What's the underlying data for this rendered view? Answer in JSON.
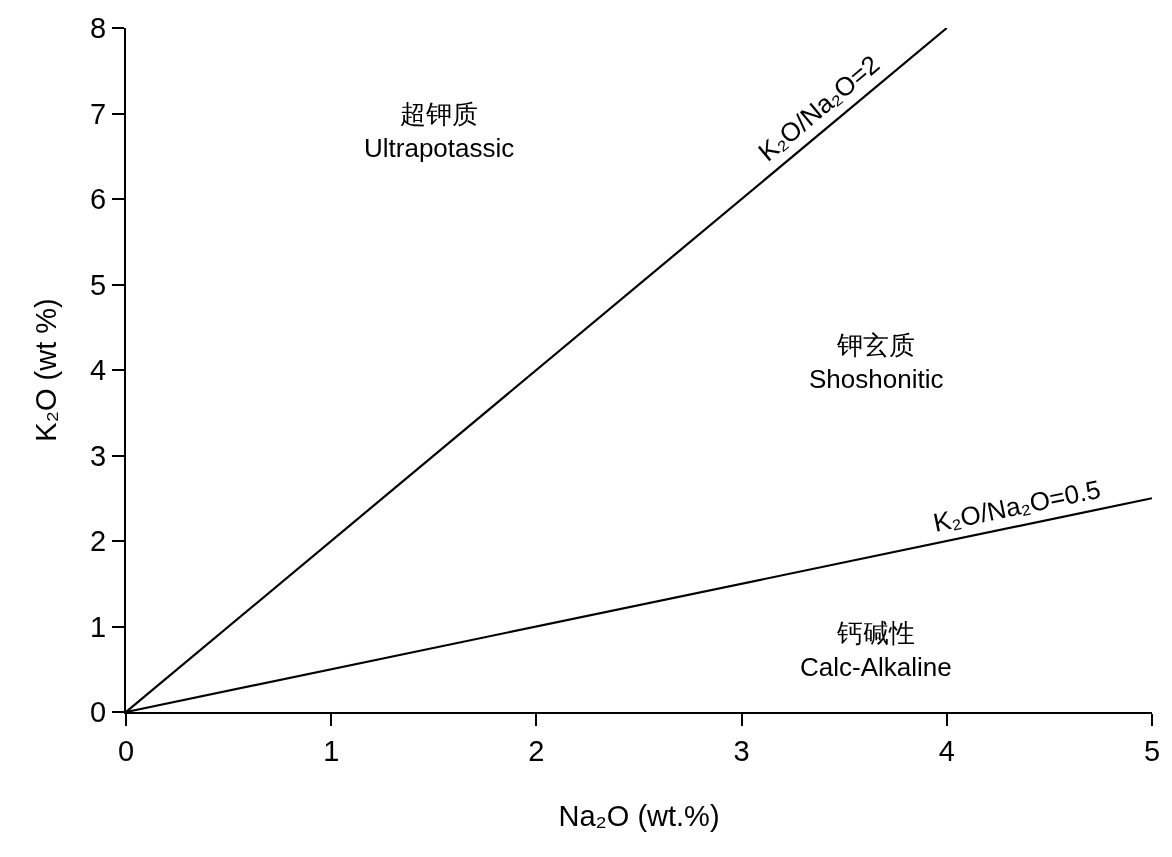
{
  "chart_data": {
    "type": "line",
    "xlabel": "Na₂O (wt.%)",
    "ylabel": "K₂O (wt %)",
    "xlim": [
      0,
      5
    ],
    "xticks": [
      0,
      1,
      2,
      3,
      4,
      5
    ],
    "ylim": [
      0,
      8
    ],
    "yticks": [
      0,
      1,
      2,
      3,
      4,
      5,
      6,
      7,
      8
    ],
    "series": [
      {
        "color": "#000000",
        "x": [
          0,
          4
        ],
        "values": [
          0,
          8
        ]
      },
      {
        "color": "#000000",
        "x": [
          0,
          5
        ],
        "values": [
          0,
          2.5
        ]
      }
    ],
    "annotations": [
      {
        "text": "K₂O/Na₂O=2",
        "x": 3.44,
        "y": 6.88
      },
      {
        "text": "K₂O/Na₂O=0.5",
        "x": 4.36,
        "y": 2.18
      },
      "超钾质\nUltrapotassic",
      "钾玄质\nShoshonitic",
      "钙碱性\nCalc-Alkaline"
    ],
    "marker": "none",
    "line_style": "solid"
  }
}
